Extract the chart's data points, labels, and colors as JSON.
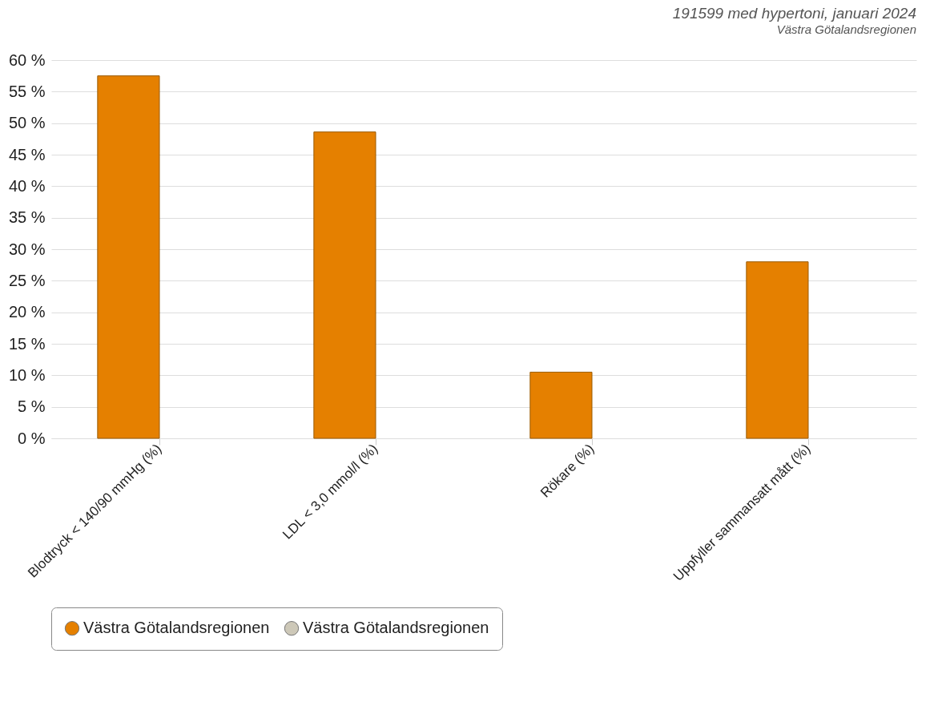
{
  "chart_data": {
    "type": "bar",
    "title": "191599 med hypertoni, januari 2024",
    "subtitle": "Västra Götalandsregionen",
    "categories": [
      "Blodtryck < 140/90 mmHg (%)",
      "LDL < 3,0 mmol/l (%)",
      "Rökare (%)",
      "Uppfyller sammansatt mått (%)"
    ],
    "series": [
      {
        "name": "Västra Götalandsregionen",
        "color": "#e58000",
        "values": [
          57.5,
          48.6,
          10.5,
          28.0
        ]
      },
      {
        "name": "Västra Götalandsregionen",
        "color": "#cdc8b8",
        "values": [
          null,
          null,
          null,
          null
        ]
      }
    ],
    "ylim": [
      0,
      60
    ],
    "yticks": [
      {
        "value": 0,
        "label": "0 %"
      },
      {
        "value": 5,
        "label": "5 %"
      },
      {
        "value": 10,
        "label": "10 %"
      },
      {
        "value": 15,
        "label": "15 %"
      },
      {
        "value": 20,
        "label": "20 %"
      },
      {
        "value": 25,
        "label": "25 %"
      },
      {
        "value": 30,
        "label": "30 %"
      },
      {
        "value": 35,
        "label": "35 %"
      },
      {
        "value": 40,
        "label": "40 %"
      },
      {
        "value": 45,
        "label": "45 %"
      },
      {
        "value": 50,
        "label": "50 %"
      },
      {
        "value": 55,
        "label": "55 %"
      },
      {
        "value": 60,
        "label": "60 %"
      }
    ],
    "grid": "y",
    "legend": "bottom"
  }
}
